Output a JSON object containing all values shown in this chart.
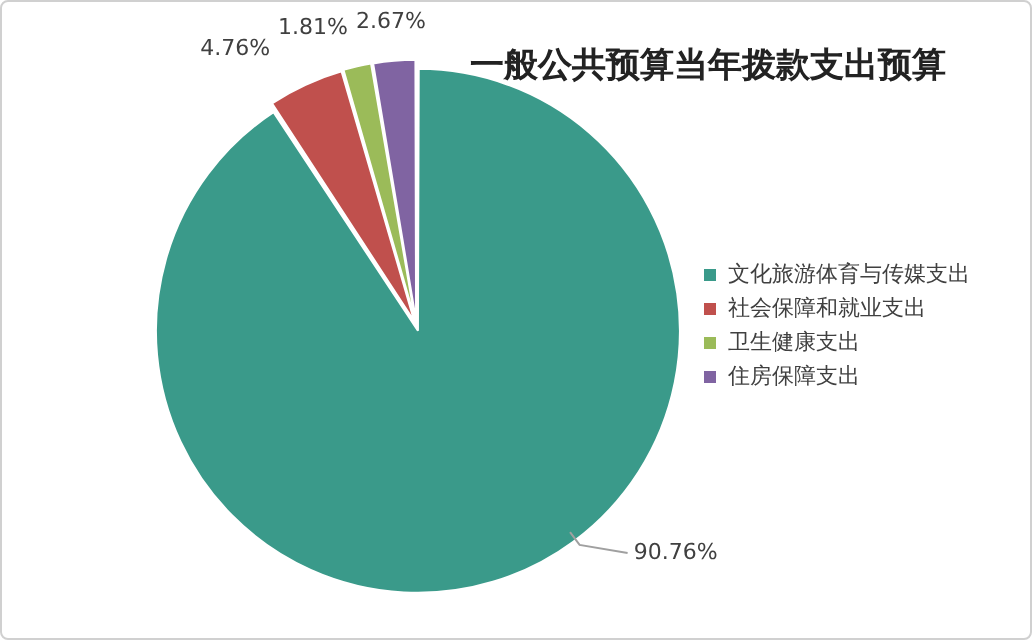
{
  "chart_data": {
    "type": "pie",
    "title": "一般公共预算当年拨款支出预算",
    "categories": [
      "文化旅游体育与传媒支出",
      "社会保障和就业支出",
      "卫生健康支出",
      "住房保障支出"
    ],
    "values": [
      90.76,
      4.76,
      1.81,
      2.67
    ],
    "colors": [
      "#3a9a8a",
      "#c0504d",
      "#9bbb59",
      "#8064a2"
    ],
    "value_labels": [
      "90.76%",
      "4.76%",
      "1.81%",
      "2.67%"
    ],
    "legend": "right"
  }
}
